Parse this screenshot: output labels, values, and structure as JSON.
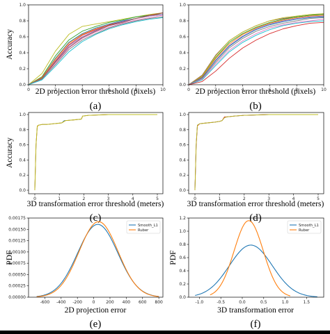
{
  "colors": {
    "c0": "#1f77b4",
    "c1": "#ff7f0e",
    "c2": "#2ca02c",
    "c3": "#d62728",
    "c4": "#9467bd",
    "c5": "#8c564b",
    "c6": "#e377c2",
    "c7": "#7f7f7f",
    "c8": "#bcbd22",
    "c9": "#17becf"
  },
  "chart_data": [
    {
      "id": "a",
      "type": "line",
      "panel_label": "(a)",
      "xlabel": "2D projection error threshold (pixels)",
      "ylabel": "Accuracy",
      "xlim": [
        0,
        10
      ],
      "ylim": [
        0,
        1.0
      ],
      "xticks": [
        "0",
        "2",
        "4",
        "6",
        "8",
        "10"
      ],
      "yticks": [
        "0.0",
        "0.2",
        "0.4",
        "0.6",
        "0.8",
        "1.0"
      ],
      "x": [
        0,
        1,
        2,
        3,
        4,
        5,
        6,
        7,
        8,
        9,
        10
      ],
      "series": [
        {
          "color": "#bcbd22",
          "values": [
            0,
            0.14,
            0.42,
            0.63,
            0.73,
            0.76,
            0.79,
            0.82,
            0.85,
            0.88,
            0.9
          ]
        },
        {
          "color": "#2ca02c",
          "values": [
            0,
            0.1,
            0.36,
            0.56,
            0.67,
            0.73,
            0.78,
            0.81,
            0.85,
            0.87,
            0.88
          ]
        },
        {
          "color": "#1f77b4",
          "values": [
            0,
            0.09,
            0.33,
            0.53,
            0.64,
            0.71,
            0.76,
            0.8,
            0.83,
            0.86,
            0.88
          ]
        },
        {
          "color": "#ff7f0e",
          "values": [
            0,
            0.09,
            0.32,
            0.52,
            0.63,
            0.7,
            0.75,
            0.79,
            0.83,
            0.86,
            0.9
          ]
        },
        {
          "color": "#d62728",
          "values": [
            0,
            0.08,
            0.3,
            0.5,
            0.62,
            0.69,
            0.75,
            0.79,
            0.83,
            0.87,
            0.9
          ]
        },
        {
          "color": "#9467bd",
          "values": [
            0,
            0.08,
            0.29,
            0.49,
            0.6,
            0.68,
            0.74,
            0.79,
            0.83,
            0.86,
            0.88
          ]
        },
        {
          "color": "#8c564b",
          "values": [
            0,
            0.08,
            0.28,
            0.47,
            0.59,
            0.67,
            0.74,
            0.78,
            0.83,
            0.87,
            0.9
          ]
        },
        {
          "color": "#e377c2",
          "values": [
            0,
            0.07,
            0.26,
            0.46,
            0.58,
            0.66,
            0.72,
            0.77,
            0.81,
            0.84,
            0.87
          ]
        },
        {
          "color": "#7f7f7f",
          "values": [
            0,
            0.07,
            0.25,
            0.44,
            0.56,
            0.64,
            0.71,
            0.76,
            0.8,
            0.83,
            0.85
          ]
        },
        {
          "color": "#17becf",
          "values": [
            0,
            0.06,
            0.23,
            0.41,
            0.54,
            0.63,
            0.7,
            0.75,
            0.79,
            0.82,
            0.84
          ]
        }
      ]
    },
    {
      "id": "b",
      "type": "line",
      "panel_label": "(b)",
      "xlabel": "2D projection error threshold (pixels)",
      "ylabel": "",
      "xlim": [
        0,
        10
      ],
      "ylim": [
        0,
        1.0
      ],
      "xticks": [
        "0",
        "2",
        "4",
        "6",
        "8",
        "10"
      ],
      "yticks": [
        "0.0",
        "0.2",
        "0.4",
        "0.6",
        "0.8",
        "1.0"
      ],
      "x": [
        0,
        1,
        2,
        3,
        4,
        5,
        6,
        7,
        8,
        9,
        10
      ],
      "series": [
        {
          "color": "#8c564b",
          "values": [
            0,
            0.12,
            0.37,
            0.55,
            0.66,
            0.74,
            0.8,
            0.83,
            0.85,
            0.87,
            0.89
          ]
        },
        {
          "color": "#bcbd22",
          "values": [
            0,
            0.11,
            0.36,
            0.55,
            0.66,
            0.74,
            0.8,
            0.84,
            0.86,
            0.88,
            0.89
          ]
        },
        {
          "color": "#2ca02c",
          "values": [
            0,
            0.1,
            0.34,
            0.53,
            0.64,
            0.72,
            0.78,
            0.82,
            0.85,
            0.87,
            0.88
          ]
        },
        {
          "color": "#ff7f0e",
          "values": [
            0,
            0.1,
            0.33,
            0.51,
            0.63,
            0.71,
            0.77,
            0.81,
            0.84,
            0.86,
            0.87
          ]
        },
        {
          "color": "#9467bd",
          "values": [
            0,
            0.09,
            0.31,
            0.49,
            0.61,
            0.7,
            0.76,
            0.8,
            0.83,
            0.85,
            0.86
          ]
        },
        {
          "color": "#1f77b4",
          "values": [
            0,
            0.09,
            0.3,
            0.48,
            0.6,
            0.69,
            0.75,
            0.79,
            0.82,
            0.84,
            0.85
          ]
        },
        {
          "color": "#7f7f7f",
          "values": [
            0,
            0.08,
            0.28,
            0.46,
            0.58,
            0.67,
            0.73,
            0.77,
            0.8,
            0.83,
            0.84
          ]
        },
        {
          "color": "#e377c2",
          "values": [
            0,
            0.07,
            0.26,
            0.43,
            0.55,
            0.64,
            0.71,
            0.75,
            0.78,
            0.8,
            0.82
          ]
        },
        {
          "color": "#17becf",
          "values": [
            0,
            0.06,
            0.24,
            0.41,
            0.53,
            0.62,
            0.69,
            0.74,
            0.77,
            0.79,
            0.8
          ]
        },
        {
          "color": "#d62728",
          "values": [
            0,
            0.04,
            0.17,
            0.33,
            0.46,
            0.56,
            0.64,
            0.7,
            0.74,
            0.77,
            0.78
          ]
        }
      ]
    },
    {
      "id": "c",
      "type": "line",
      "panel_label": "(c)",
      "xlabel": "3D transformation error threshold (meters)",
      "ylabel": "Accuracy",
      "xlim": [
        0,
        5
      ],
      "ylim": [
        0,
        1.0
      ],
      "xticks": [
        "0",
        "1",
        "2",
        "3",
        "4",
        "5"
      ],
      "yticks": [
        "0.0",
        "0.2",
        "0.4",
        "0.6",
        "0.8",
        "1.0"
      ],
      "x": [
        0,
        0.05,
        0.1,
        0.15,
        0.3,
        0.5,
        0.8,
        1.1,
        1.2,
        1.25,
        1.6,
        1.9,
        1.95,
        2.2,
        3,
        4,
        5
      ],
      "series": [
        {
          "color": "#1f77b4",
          "values": [
            0,
            0.6,
            0.84,
            0.86,
            0.87,
            0.87,
            0.88,
            0.89,
            0.92,
            0.92,
            0.93,
            0.94,
            0.98,
            0.99,
            1.0,
            1.0,
            1.0
          ]
        },
        {
          "color": "#ff7f0e",
          "values": [
            0,
            0.6,
            0.84,
            0.86,
            0.87,
            0.87,
            0.88,
            0.89,
            0.91,
            0.92,
            0.93,
            0.94,
            0.98,
            0.99,
            1.0,
            1.0,
            1.0
          ]
        },
        {
          "color": "#bcbd22",
          "values": [
            0,
            0.61,
            0.85,
            0.86,
            0.87,
            0.87,
            0.88,
            0.89,
            0.91,
            0.92,
            0.93,
            0.94,
            0.98,
            0.99,
            1.0,
            1.0,
            1.0
          ]
        }
      ]
    },
    {
      "id": "d",
      "type": "line",
      "panel_label": "(d)",
      "xlabel": "3D transformation error threshold (meters)",
      "ylabel": "",
      "xlim": [
        0,
        5
      ],
      "ylim": [
        0,
        1.0
      ],
      "xticks": [
        "0",
        "1",
        "2",
        "3",
        "4",
        "5"
      ],
      "yticks": [
        "0.0",
        "0.2",
        "0.4",
        "0.6",
        "0.8",
        "1.0"
      ],
      "x": [
        0,
        0.05,
        0.1,
        0.2,
        0.5,
        0.8,
        1.0,
        1.1,
        1.2,
        1.3,
        1.6,
        2.0,
        3,
        4,
        5
      ],
      "series": [
        {
          "color": "#1f77b4",
          "values": [
            0,
            0.6,
            0.86,
            0.88,
            0.89,
            0.9,
            0.91,
            0.92,
            0.96,
            0.97,
            0.98,
            0.99,
            1.0,
            1.0,
            1.0
          ]
        },
        {
          "color": "#d62728",
          "values": [
            0,
            0.59,
            0.85,
            0.88,
            0.89,
            0.9,
            0.91,
            0.92,
            0.97,
            0.97,
            0.98,
            0.99,
            1.0,
            1.0,
            1.0
          ]
        },
        {
          "color": "#bcbd22",
          "values": [
            0,
            0.61,
            0.86,
            0.88,
            0.89,
            0.9,
            0.91,
            0.92,
            0.96,
            0.97,
            0.98,
            0.99,
            1.0,
            1.0,
            1.0
          ]
        }
      ]
    },
    {
      "id": "e",
      "type": "line",
      "panel_label": "(e)",
      "xlabel": "2D projection error",
      "ylabel": "PDF",
      "xlim": [
        -800,
        850
      ],
      "ylim": [
        0,
        0.00175
      ],
      "xticks": [
        "-600",
        "-400",
        "-200",
        "0",
        "200",
        "400",
        "600",
        "800"
      ],
      "yticks": [
        "0.00000",
        "0.00025",
        "0.00050",
        "0.00075",
        "0.00100",
        "0.00125",
        "0.00150",
        "0.00175"
      ],
      "legend": [
        "Smooth_L1",
        "Ruber"
      ],
      "legend_loc": "top-right",
      "gaussians": [
        {
          "name": "Smooth_L1",
          "color": "#1f77b4",
          "mean": 50,
          "peak": 0.00161,
          "sd": 247,
          "range": [
            -700,
            800
          ]
        },
        {
          "name": "Ruber",
          "color": "#ff7f0e",
          "mean": 60,
          "peak": 0.00167,
          "sd": 239,
          "range": [
            -700,
            800
          ]
        }
      ]
    },
    {
      "id": "f",
      "type": "line",
      "panel_label": "(f)",
      "xlabel": "3D transformation error",
      "ylabel": "PDF",
      "xlim": [
        -1.25,
        1.9
      ],
      "ylim": [
        0,
        1.2
      ],
      "xticks": [
        "-1.0",
        "-0.5",
        "0.0",
        "0.5",
        "1.0",
        "1.5"
      ],
      "yticks": [
        "0.0",
        "0.2",
        "0.4",
        "0.6",
        "0.8",
        "1.0",
        "1.2"
      ],
      "legend": [
        "Smooth_L1",
        "Ruber"
      ],
      "legend_loc": "top-right",
      "gaussians": [
        {
          "name": "Smooth_L1",
          "color": "#1f77b4",
          "mean": 0.2,
          "peak": 0.79,
          "sd": 0.5,
          "range": [
            -1.1,
            1.75
          ]
        },
        {
          "name": "Ruber",
          "color": "#ff7f0e",
          "mean": 0.15,
          "peak": 1.16,
          "sd": 0.34,
          "range": [
            -0.75,
            1.12
          ]
        }
      ]
    }
  ]
}
